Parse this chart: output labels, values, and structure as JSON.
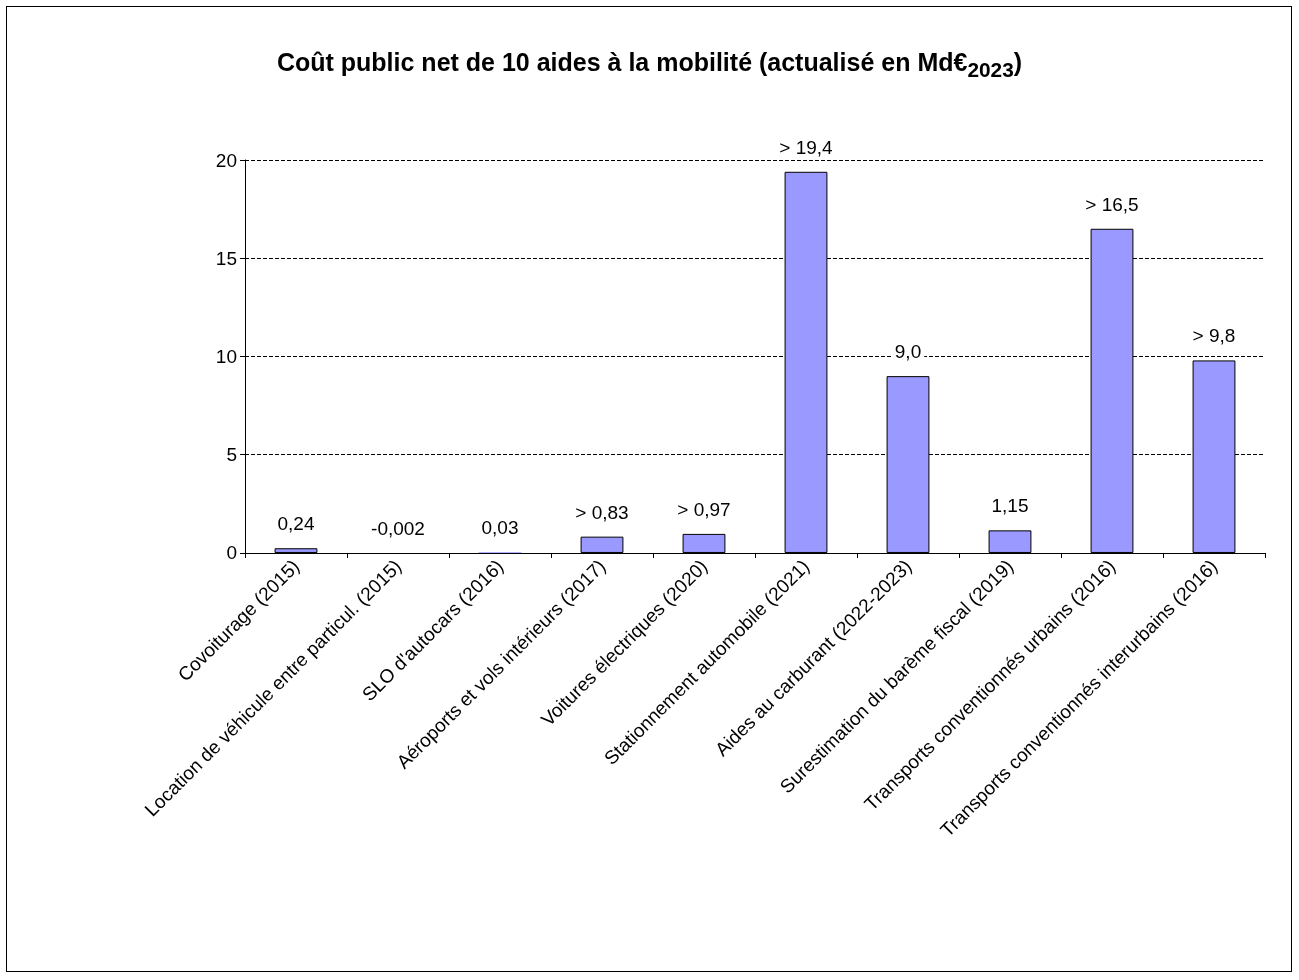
{
  "chart_data": {
    "type": "bar",
    "title": "Coût public net de 10 aides à la mobilité (actualisé en Md€$_{2023}$)",
    "categories": [
      "Covoiturage (2015)",
      "Location de véhicule entre particul. (2015)",
      "SLO d'autocars (2016)",
      "Aéroports et vols intérieurs (2017)",
      "Voitures électriques (2020)",
      "Stationnement automobile (2021)",
      "Aides au carburant (2022-2023)",
      "Surestimation du barème fiscal (2019)",
      "Transports conventionnés urbains (2016)",
      "Transports conventionnés interurbains (2016)"
    ],
    "values": [
      0.24,
      -0.002,
      0.03,
      0.83,
      0.97,
      19.4,
      9.0,
      1.15,
      16.5,
      9.8
    ],
    "value_labels": [
      "0,24",
      "-0,002",
      "0,03",
      "> 0,83",
      "> 0,97",
      "> 19,4",
      "9,0",
      "1,15",
      "> 16,5",
      "> 9,8"
    ],
    "color": "#9999ff",
    "ylim": [
      -0.002,
      20
    ],
    "yticks": [
      0,
      5,
      10,
      15,
      20
    ],
    "grid": "y"
  }
}
